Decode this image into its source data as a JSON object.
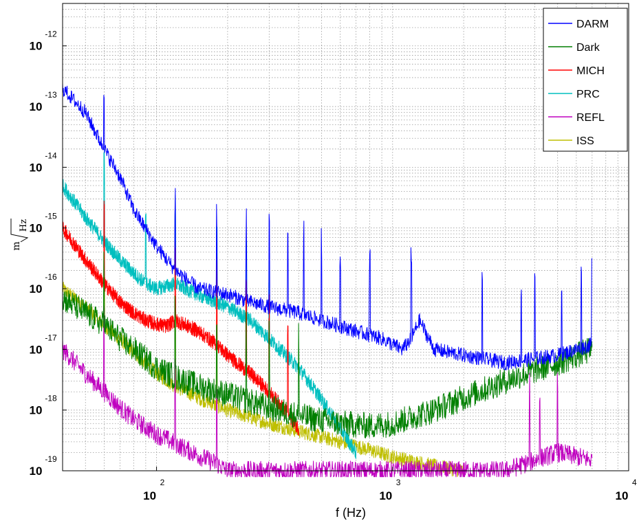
{
  "chart_data": {
    "type": "line",
    "xlabel": "f (Hz)",
    "ylabel": {
      "numerator": "m",
      "denominator": "Hz"
    },
    "xscale": "log",
    "yscale": "log",
    "xlim": [
      40,
      10000
    ],
    "ylim": [
      1e-19,
      5e-12
    ],
    "x_ticks": [
      {
        "base": "10",
        "exp": "2",
        "value": 100
      },
      {
        "base": "10",
        "exp": "3",
        "value": 1000
      },
      {
        "base": "10",
        "exp": "4",
        "value": 10000
      }
    ],
    "y_ticks": [
      {
        "base": "10",
        "exp": "-12",
        "value": 1e-12
      },
      {
        "base": "10",
        "exp": "-13",
        "value": 1e-13
      },
      {
        "base": "10",
        "exp": "-14",
        "value": 1e-14
      },
      {
        "base": "10",
        "exp": "-15",
        "value": 1e-15
      },
      {
        "base": "10",
        "exp": "-16",
        "value": 1e-16
      },
      {
        "base": "10",
        "exp": "-17",
        "value": 1e-17
      },
      {
        "base": "10",
        "exp": "-18",
        "value": 1e-18
      },
      {
        "base": "10",
        "exp": "-19",
        "value": 1e-19
      }
    ],
    "grid": true,
    "legend_position": "top-right",
    "series": [
      {
        "name": "DARM",
        "color": "#0000ff",
        "x": [
          40,
          50,
          60,
          70,
          80,
          100,
          120,
          150,
          200,
          250,
          300,
          400,
          500,
          700,
          900,
          1000,
          1100,
          1200,
          1300,
          1500,
          2000,
          3000,
          5000,
          7000
        ],
        "y": [
          2e-13,
          8e-14,
          2e-14,
          7e-15,
          2e-15,
          5e-16,
          2e-16,
          1e-16,
          8e-17,
          6e-17,
          5e-17,
          4e-17,
          3e-17,
          2e-17,
          1.5e-17,
          1.2e-17,
          1e-17,
          1.5e-17,
          3e-17,
          1e-17,
          8e-18,
          6e-18,
          8e-18,
          1.2e-17
        ]
      },
      {
        "name": "Dark",
        "color": "#007f00",
        "x": [
          40,
          50,
          60,
          70,
          80,
          100,
          120,
          150,
          200,
          300,
          400,
          600,
          800,
          1000,
          1500,
          2000,
          3000,
          4000,
          5000,
          7000
        ],
        "y": [
          7e-17,
          4e-17,
          2.5e-17,
          1.5e-17,
          1e-17,
          5e-18,
          3.5e-18,
          2.5e-18,
          1.8e-18,
          1.1e-18,
          8e-19,
          6e-19,
          5.5e-19,
          6e-19,
          1e-18,
          1.6e-18,
          3e-18,
          4.5e-18,
          6e-18,
          1e-17
        ]
      },
      {
        "name": "MICH",
        "color": "#ff0000",
        "x": [
          40,
          50,
          60,
          70,
          80,
          90,
          100,
          110,
          120,
          150,
          180,
          200,
          250,
          300,
          350,
          400
        ],
        "y": [
          1e-15,
          3e-16,
          1.2e-16,
          6e-17,
          4e-17,
          3e-17,
          2.6e-17,
          2.4e-17,
          3e-17,
          2e-17,
          1.2e-17,
          8e-18,
          4e-18,
          2e-18,
          1e-18,
          5e-19
        ]
      },
      {
        "name": "PRC",
        "color": "#00bfbf",
        "x": [
          40,
          50,
          60,
          70,
          80,
          90,
          100,
          120,
          150,
          200,
          250,
          300,
          400,
          500,
          600,
          700
        ],
        "y": [
          5e-15,
          1.5e-15,
          6e-16,
          3e-16,
          1.8e-16,
          1.2e-16,
          1e-16,
          1.2e-16,
          8e-17,
          5e-17,
          3e-17,
          1.5e-17,
          5e-18,
          1.5e-18,
          5e-19,
          2e-19
        ]
      },
      {
        "name": "REFL",
        "color": "#bf00bf",
        "x": [
          40,
          50,
          60,
          70,
          80,
          100,
          120,
          150,
          180,
          200,
          250,
          300,
          400,
          600,
          1000,
          1500,
          2000,
          3000,
          4000,
          5000,
          7000
        ],
        "y": [
          1e-17,
          4e-18,
          2e-18,
          1.1e-18,
          7e-19,
          4e-19,
          2.8e-19,
          1.8e-19,
          1.3e-19,
          1e-19,
          1e-19,
          1e-19,
          1e-19,
          1e-19,
          1e-19,
          1e-19,
          1e-19,
          1e-19,
          1.5e-19,
          2e-19,
          1.5e-19
        ]
      },
      {
        "name": "ISS",
        "color": "#bfbf00",
        "x": [
          40,
          50,
          60,
          70,
          80,
          100,
          120,
          150,
          200,
          300,
          400,
          600,
          800,
          1000,
          1500,
          2000
        ],
        "y": [
          1e-16,
          5e-17,
          2.5e-17,
          1.5e-17,
          9e-18,
          4e-18,
          2.5e-18,
          1.6e-18,
          1e-18,
          6e-19,
          4.5e-19,
          3e-19,
          2.2e-19,
          1.7e-19,
          1.2e-19,
          1e-19
        ]
      }
    ]
  }
}
